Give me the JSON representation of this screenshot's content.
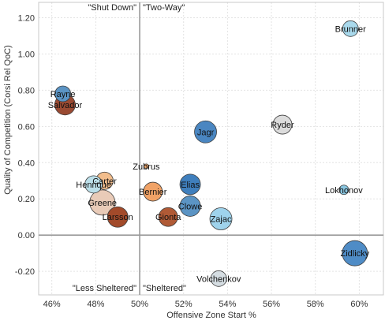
{
  "chart_data": {
    "type": "scatter",
    "title": "",
    "xlabel": "Offensive Zone Start %",
    "ylabel": "Quality of Competition (Corsi Rel QoC)",
    "xlim": [
      0.454,
      0.611
    ],
    "ylim": [
      -0.33,
      1.285
    ],
    "x_ticks": [
      0.46,
      0.48,
      0.5,
      0.52,
      0.54,
      0.56,
      0.58,
      0.6
    ],
    "x_tick_labels": [
      "46%",
      "48%",
      "50%",
      "52%",
      "54%",
      "56%",
      "58%",
      "60%"
    ],
    "y_ticks": [
      -0.2,
      0.0,
      0.2,
      0.4,
      0.6,
      0.8,
      1.0,
      1.2
    ],
    "y_tick_labels": [
      "-0.20",
      "0.00",
      "0.20",
      "0.40",
      "0.60",
      "0.80",
      "1.00",
      "1.20"
    ],
    "quadrant_lines": {
      "x": 0.5,
      "y": 0.0
    },
    "quadrant_labels": [
      {
        "text": "\"Shut Down\"",
        "position": "top-left"
      },
      {
        "text": "\"Two-Way\"",
        "position": "top-right"
      },
      {
        "text": "\"Less Sheltered\"",
        "position": "bottom-left"
      },
      {
        "text": "\"Sheltered\"",
        "position": "bottom-right"
      }
    ],
    "grid": true,
    "points": [
      {
        "name": "Brunner",
        "x": 0.596,
        "y": 1.14,
        "size": 10,
        "color": "#a9d9ec"
      },
      {
        "name": "Rayne",
        "x": 0.465,
        "y": 0.78,
        "size": 10,
        "color": "#5b94c4"
      },
      {
        "name": "Salvador",
        "x": 0.466,
        "y": 0.72,
        "size": 13,
        "color": "#9a4a32"
      },
      {
        "name": "Ryder",
        "x": 0.565,
        "y": 0.61,
        "size": 12,
        "color": "#dcdcdc"
      },
      {
        "name": "Jagr",
        "x": 0.53,
        "y": 0.57,
        "size": 14,
        "color": "#4a86c1"
      },
      {
        "name": "Zubrus",
        "x": 0.503,
        "y": 0.38,
        "size": 3,
        "color": "#e8a36b"
      },
      {
        "name": "Carter",
        "x": 0.484,
        "y": 0.3,
        "size": 11,
        "color": "#f2bd8c"
      },
      {
        "name": "Henrique",
        "x": 0.479,
        "y": 0.28,
        "size": 11,
        "color": "#bcdfe9"
      },
      {
        "name": "Elias",
        "x": 0.523,
        "y": 0.28,
        "size": 13,
        "color": "#3f7fbd"
      },
      {
        "name": "Lokhonov",
        "x": 0.593,
        "y": 0.25,
        "size": 6,
        "color": "#89c5df"
      },
      {
        "name": "Bernier",
        "x": 0.506,
        "y": 0.24,
        "size": 12,
        "color": "#f0a266"
      },
      {
        "name": "Greene",
        "x": 0.483,
        "y": 0.18,
        "size": 16,
        "color": "#e9cbb8"
      },
      {
        "name": "Clowe",
        "x": 0.523,
        "y": 0.16,
        "size": 13,
        "color": "#5b94c4"
      },
      {
        "name": "Larsson",
        "x": 0.49,
        "y": 0.1,
        "size": 13,
        "color": "#a24a2a"
      },
      {
        "name": "Gionta",
        "x": 0.513,
        "y": 0.1,
        "size": 12,
        "color": "#b05a36"
      },
      {
        "name": "Zajac",
        "x": 0.537,
        "y": 0.09,
        "size": 14,
        "color": "#9fd3ec"
      },
      {
        "name": "Zidlicky",
        "x": 0.598,
        "y": -0.1,
        "size": 16,
        "color": "#4f8cc6"
      },
      {
        "name": "Volchenkov",
        "x": 0.536,
        "y": -0.24,
        "size": 10,
        "color": "#d5dde2"
      }
    ]
  }
}
